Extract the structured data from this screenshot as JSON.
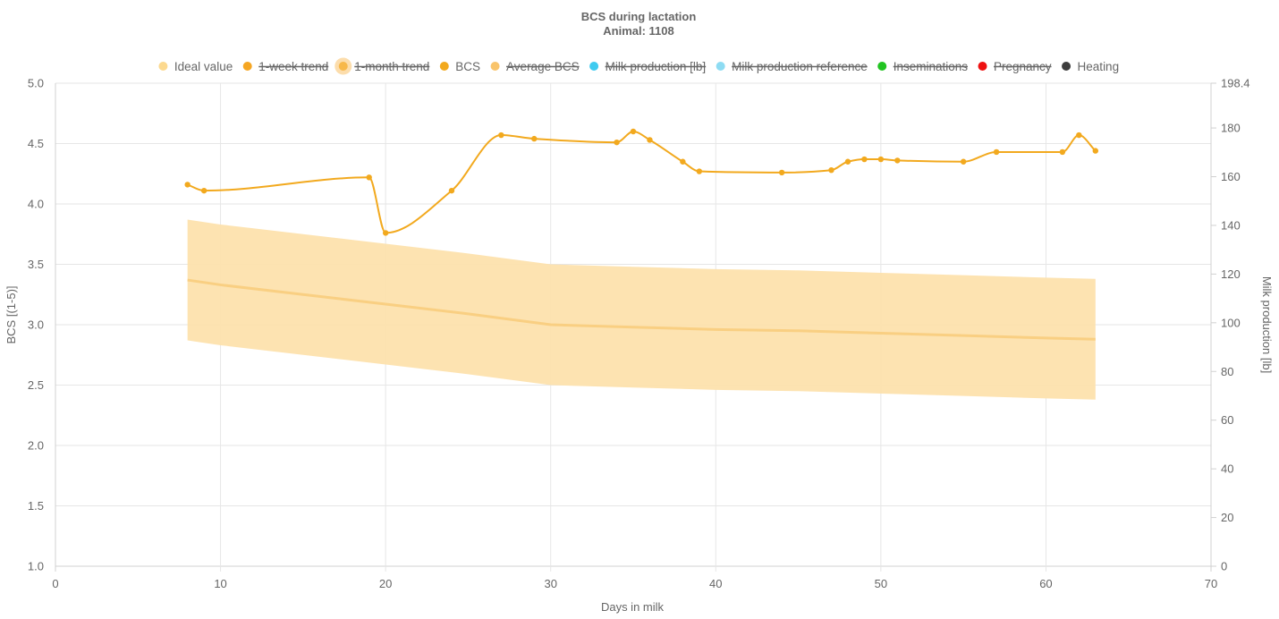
{
  "chart_data": {
    "type": "line",
    "title": "BCS during lactation",
    "subtitle": "Animal: 1108",
    "xlabel": "Days in milk",
    "ylabel": "BCS [(1-5)]",
    "y2label": "Milk production [lb]",
    "xlim": [
      0,
      70
    ],
    "ylim": [
      1.0,
      5.0
    ],
    "y2lim": [
      0,
      198.4
    ],
    "x_ticks": [
      "0",
      "10",
      "20",
      "30",
      "40",
      "50",
      "60",
      "70"
    ],
    "y_ticks": [
      "1.0",
      "1.5",
      "2.0",
      "2.5",
      "3.0",
      "3.5",
      "4.0",
      "4.5",
      "5.0"
    ],
    "y2_ticks": [
      "0",
      "20",
      "40",
      "60",
      "80",
      "100",
      "120",
      "140",
      "160",
      "180",
      "198.4"
    ],
    "grid": true,
    "legend_position": "top",
    "legend": [
      {
        "label": "Ideal value",
        "color": "#fcd98f",
        "hidden": false
      },
      {
        "label": "1-week trend",
        "color": "#f5a623",
        "hidden": true
      },
      {
        "label": "1-month trend",
        "color": "#f7b84a",
        "hidden": true
      },
      {
        "label": "BCS",
        "color": "#f2a91e",
        "hidden": false
      },
      {
        "label": "Average BCS",
        "color": "#f9c46b",
        "hidden": true
      },
      {
        "label": "Milk production [lb]",
        "color": "#3ecbf0",
        "hidden": true
      },
      {
        "label": "Milk production reference",
        "color": "#8edcf3",
        "hidden": true
      },
      {
        "label": "Inseminations",
        "color": "#22c422",
        "hidden": true
      },
      {
        "label": "Pregnancy",
        "color": "#ee1111",
        "hidden": true
      },
      {
        "label": "Heating",
        "color": "#3d3d3d",
        "hidden": false
      }
    ],
    "series": [
      {
        "name": "BCS",
        "color": "#f2a91e",
        "x": [
          8,
          9,
          19,
          20,
          24,
          27,
          29,
          34,
          35,
          36,
          38,
          39,
          44,
          47,
          48,
          49,
          50,
          51,
          55,
          57,
          61,
          62,
          63
        ],
        "y": [
          4.16,
          4.11,
          4.22,
          3.76,
          4.11,
          4.57,
          4.54,
          4.51,
          4.6,
          4.53,
          4.35,
          4.27,
          4.26,
          4.28,
          4.35,
          4.37,
          4.37,
          4.36,
          4.35,
          4.43,
          4.43,
          4.57,
          4.44
        ]
      },
      {
        "name": "Ideal value",
        "color": "#fcd98f",
        "x": [
          8,
          10,
          15,
          20,
          25,
          30,
          35,
          40,
          45,
          50,
          55,
          60,
          63
        ],
        "y": [
          3.37,
          3.33,
          3.25,
          3.17,
          3.09,
          3.0,
          2.98,
          2.96,
          2.95,
          2.93,
          2.91,
          2.89,
          2.88
        ],
        "upper": [
          3.87,
          3.83,
          3.75,
          3.67,
          3.59,
          3.5,
          3.48,
          3.46,
          3.45,
          3.43,
          3.41,
          3.39,
          3.38
        ],
        "lower": [
          2.87,
          2.83,
          2.75,
          2.67,
          2.59,
          2.5,
          2.48,
          2.46,
          2.45,
          2.43,
          2.41,
          2.39,
          2.38
        ]
      }
    ]
  }
}
